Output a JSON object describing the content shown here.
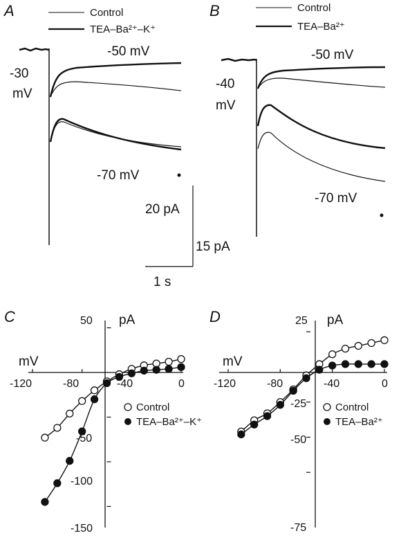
{
  "panels": {
    "A": {
      "letter": "A",
      "legend": [
        "Control",
        "TEA–Ba²⁺–K⁺"
      ],
      "step_label": "-30",
      "step_unit": "mV",
      "upper_label": "-50 mV",
      "lower_label": "-70 mV"
    },
    "B": {
      "letter": "B",
      "legend": [
        "Control",
        "TEA–Ba²⁺"
      ],
      "step_label": "-40",
      "step_unit": "mV",
      "upper_label": "-50 mV",
      "lower_label": "-70 mV"
    }
  },
  "scale_bars": {
    "pa_a": "20 pA",
    "pa_b": "15 pA",
    "time": "1 s"
  },
  "chart_data": [
    {
      "type": "scatter",
      "panel": "C",
      "xlabel": "mV",
      "ylabel": "pA",
      "xlim": [
        -120,
        0
      ],
      "ylim": [
        -150,
        50
      ],
      "x_ticks": [
        -120,
        -80,
        -40,
        0
      ],
      "y_ticks": [
        50,
        -50,
        -100,
        -150
      ],
      "legend_placement": "center-right",
      "series": [
        {
          "name": "Control",
          "marker": "open-circle",
          "x": [
            -110,
            -100,
            -90,
            -80,
            -70,
            -60,
            -50,
            -40,
            -30,
            -20,
            -10,
            0
          ],
          "y": [
            -73,
            -62,
            -46,
            -32,
            -20,
            -10,
            -2,
            4,
            8,
            10,
            12,
            15
          ]
        },
        {
          "name": "TEA–Ba²⁺–K⁺",
          "marker": "filled-circle",
          "x": [
            -110,
            -100,
            -90,
            -80,
            -70,
            -60,
            -50,
            -40,
            -30,
            -20,
            -10,
            0
          ],
          "y": [
            -145,
            -124,
            -99,
            -66,
            -30,
            -12,
            -5,
            -1,
            2,
            3,
            4,
            6
          ]
        }
      ]
    },
    {
      "type": "scatter",
      "panel": "D",
      "xlabel": "mV",
      "ylabel": "pA",
      "xlim": [
        -120,
        0
      ],
      "ylim": [
        -75,
        25
      ],
      "x_ticks": [
        -120,
        -80,
        -40,
        0
      ],
      "y_ticks": [
        25,
        -25,
        -50,
        -75
      ],
      "legend_placement": "center-right",
      "series": [
        {
          "name": "Control",
          "marker": "open-circle",
          "x": [
            -110,
            -100,
            -90,
            -80,
            -70,
            -60,
            -50,
            -40,
            -30,
            -20,
            -10,
            0
          ],
          "y": [
            -46,
            -38,
            -33,
            -25,
            -16,
            -6,
            2,
            9,
            13,
            15,
            17,
            19
          ]
        },
        {
          "name": "TEA–Ba²⁺",
          "marker": "filled-circle",
          "x": [
            -110,
            -100,
            -90,
            -80,
            -70,
            -60,
            -50,
            -40,
            -30,
            -20,
            -10,
            0
          ],
          "y": [
            -48,
            -41,
            -35,
            -27,
            -17,
            -8,
            -2,
            1,
            2,
            2,
            2,
            2
          ]
        }
      ]
    }
  ]
}
